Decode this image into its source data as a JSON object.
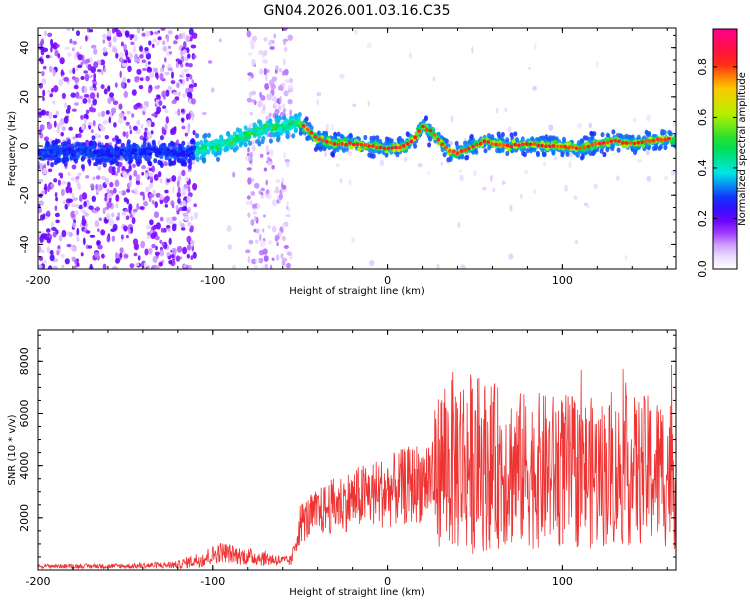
{
  "title": "GN04.2026.001.03.16.C35",
  "colors": {
    "snr_line": "#ee3333",
    "axis": "#000000"
  },
  "chart_data": [
    {
      "type": "heatmap",
      "xlabel": "Height of straight line (km)",
      "ylabel": "Frequency (Hz)",
      "xlim": [
        -200,
        165
      ],
      "ylim": [
        -50,
        48
      ],
      "x_ticks": [
        -200,
        -100,
        0,
        100
      ],
      "x_tick_labels": [
        "-200",
        "-100",
        "0",
        "100"
      ],
      "y_ticks": [
        -40,
        -20,
        0,
        20,
        40
      ],
      "y_tick_labels": [
        "-40",
        "-20",
        "0",
        "20",
        "40"
      ],
      "ridge": {
        "x": [
          -200,
          -180,
          -160,
          -140,
          -120,
          -110,
          -100,
          -90,
          -80,
          -70,
          -60,
          -55,
          -50,
          -45,
          -40,
          -30,
          -20,
          -10,
          0,
          10,
          15,
          20,
          25,
          30,
          35,
          40,
          45,
          50,
          55,
          60,
          70,
          80,
          90,
          100,
          110,
          120,
          130,
          140,
          150,
          160,
          165
        ],
        "y": [
          -3,
          -2,
          -3,
          -2,
          -3,
          -2,
          0,
          2,
          5,
          7,
          8,
          9,
          9,
          6,
          3,
          1,
          1,
          0,
          -1,
          0,
          3,
          8,
          6,
          2,
          -2,
          -3,
          -1,
          0,
          2,
          1,
          0,
          1,
          0,
          0,
          -1,
          1,
          2,
          1,
          2,
          3,
          2
        ]
      },
      "colorbar": {
        "label": "Normalized spectral amplitude",
        "range": [
          0,
          0.95
        ],
        "ticks": [
          0.0,
          0.2,
          0.4,
          0.6,
          0.8
        ],
        "tick_labels": [
          "0.0",
          "0.2",
          "0.4",
          "0.6",
          "0.8"
        ]
      },
      "grid": false
    },
    {
      "type": "line",
      "xlabel": "Height of straight line (km)",
      "ylabel": "SNR (10 * v/v)",
      "xlim": [
        -200,
        165
      ],
      "ylim": [
        0,
        9200
      ],
      "x_ticks": [
        -200,
        -100,
        0,
        100
      ],
      "x_tick_labels": [
        "-200",
        "-100",
        "0",
        "100"
      ],
      "y_ticks": [
        2000,
        4000,
        6000,
        8000
      ],
      "y_tick_labels": [
        "2000",
        "4000",
        "6000",
        "8000"
      ],
      "envelope": {
        "x": [
          -200,
          -150,
          -120,
          -105,
          -95,
          -85,
          -70,
          -60,
          -55,
          -50,
          -40,
          -30,
          -20,
          -10,
          0,
          10,
          20,
          25,
          30,
          40,
          50,
          60,
          80,
          100,
          120,
          140,
          160,
          165
        ],
        "mean": [
          150,
          150,
          200,
          450,
          700,
          550,
          450,
          350,
          350,
          1800,
          2200,
          2500,
          2700,
          2900,
          3000,
          3200,
          3400,
          3600,
          4000,
          4200,
          4100,
          4000,
          3800,
          3800,
          3700,
          3800,
          3800,
          3700
        ],
        "amp": [
          80,
          100,
          150,
          350,
          400,
          350,
          300,
          200,
          200,
          800,
          900,
          1100,
          1200,
          1300,
          1400,
          1500,
          1600,
          1900,
          3200,
          3600,
          3500,
          3200,
          3000,
          3000,
          2900,
          2900,
          3000,
          3000
        ]
      },
      "grid": false
    }
  ]
}
